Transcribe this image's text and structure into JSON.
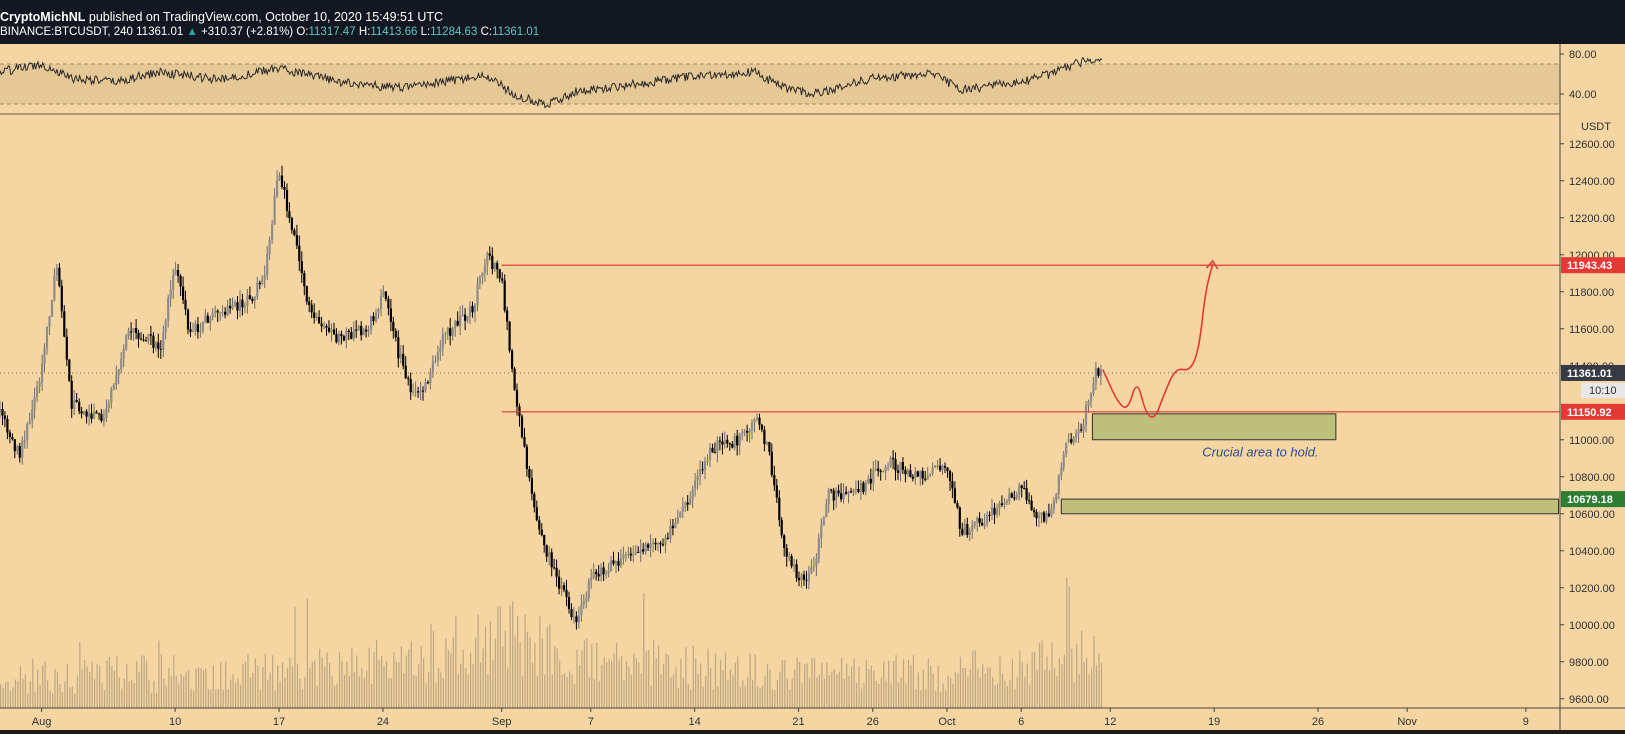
{
  "header": {
    "author": "CryptoMichNL",
    "published_text": "published on TradingView.com, October 10, 2020 15:49:51 UTC",
    "symbol": "BINANCE:BTCUSDT, 240",
    "last": "11361.01",
    "change_arrow": "▲",
    "change": "+310.37 (+2.81%)",
    "o_label": "O:",
    "o_value": "11317.47",
    "h_label": "H:",
    "h_value": "11413.66",
    "l_label": "L:",
    "l_value": "11284.63",
    "c_label": "C:",
    "c_value": "11361.01"
  },
  "colors": {
    "background": "#f5d6a3",
    "candle": "#000000",
    "resistance": "#e53935",
    "support_zone": "#bdbf7a",
    "tag_red": "#e53935",
    "tag_green": "#2e7d32",
    "tag_dark": "#363a45"
  },
  "chart_data": {
    "type": "candlestick",
    "currency": "USDT",
    "ylim": [
      9550,
      12750
    ],
    "y_ticks": [
      {
        "v": 12600,
        "label": "12600.00"
      },
      {
        "v": 12400,
        "label": "12400.00"
      },
      {
        "v": 12200,
        "label": "12200.00"
      },
      {
        "v": 12000,
        "label": "12000.00"
      },
      {
        "v": 11800,
        "label": "11800.00"
      },
      {
        "v": 11600,
        "label": "11600.00"
      },
      {
        "v": 11400,
        "label": "11400.00"
      },
      {
        "v": 11000,
        "label": "11000.00"
      },
      {
        "v": 10800,
        "label": "10800.00"
      },
      {
        "v": 10600,
        "label": "10600.00"
      },
      {
        "v": 10400,
        "label": "10400.00"
      },
      {
        "v": 10200,
        "label": "10200.00"
      },
      {
        "v": 10000,
        "label": "10000.00"
      },
      {
        "v": 9800,
        "label": "9800.00"
      },
      {
        "v": 9600,
        "label": "9600.00"
      }
    ],
    "x_range": [
      -2.8,
      102.3
    ],
    "x_ticks": [
      {
        "d": 0,
        "label": "Aug"
      },
      {
        "d": 9,
        "label": "10"
      },
      {
        "d": 16,
        "label": "17"
      },
      {
        "d": 23,
        "label": "24"
      },
      {
        "d": 31,
        "label": "Sep"
      },
      {
        "d": 37,
        "label": "7"
      },
      {
        "d": 44,
        "label": "14"
      },
      {
        "d": 51,
        "label": "21"
      },
      {
        "d": 56,
        "label": "26"
      },
      {
        "d": 61,
        "label": "Oct"
      },
      {
        "d": 66,
        "label": "6"
      },
      {
        "d": 72,
        "label": "12"
      },
      {
        "d": 79,
        "label": "19"
      },
      {
        "d": 86,
        "label": "26"
      },
      {
        "d": 92,
        "label": "Nov"
      },
      {
        "d": 100,
        "label": "9"
      }
    ],
    "price_path": [
      [
        -2.8,
        11150
      ],
      [
        -1.5,
        10920
      ],
      [
        0,
        11380
      ],
      [
        1,
        11950
      ],
      [
        2,
        11200
      ],
      [
        4,
        11100
      ],
      [
        6,
        11600
      ],
      [
        8,
        11500
      ],
      [
        9,
        11950
      ],
      [
        10,
        11580
      ],
      [
        12,
        11700
      ],
      [
        14,
        11750
      ],
      [
        15,
        11900
      ],
      [
        16,
        12450
      ],
      [
        17,
        12100
      ],
      [
        18,
        11700
      ],
      [
        20,
        11550
      ],
      [
        22,
        11600
      ],
      [
        23,
        11800
      ],
      [
        24,
        11480
      ],
      [
        25,
        11250
      ],
      [
        26,
        11300
      ],
      [
        27,
        11550
      ],
      [
        29,
        11700
      ],
      [
        30,
        12010
      ],
      [
        31,
        11850
      ],
      [
        32,
        11200
      ],
      [
        33,
        10700
      ],
      [
        34,
        10400
      ],
      [
        35,
        10200
      ],
      [
        36,
        10000
      ],
      [
        37,
        10250
      ],
      [
        38,
        10300
      ],
      [
        40,
        10400
      ],
      [
        42,
        10450
      ],
      [
        43,
        10600
      ],
      [
        44,
        10750
      ],
      [
        45,
        10950
      ],
      [
        47,
        11000
      ],
      [
        48,
        11120
      ],
      [
        49,
        10950
      ],
      [
        50,
        10400
      ],
      [
        51,
        10250
      ],
      [
        52,
        10280
      ],
      [
        53,
        10700
      ],
      [
        55,
        10720
      ],
      [
        57,
        10880
      ],
      [
        59,
        10800
      ],
      [
        61,
        10850
      ],
      [
        62,
        10500
      ],
      [
        64,
        10600
      ],
      [
        66,
        10750
      ],
      [
        67,
        10570
      ],
      [
        68,
        10600
      ],
      [
        69,
        10950
      ],
      [
        70,
        11050
      ],
      [
        71,
        11360
      ],
      [
        71.5,
        11361.01
      ]
    ],
    "volume_path": [
      [
        -2.8,
        0.25
      ],
      [
        20,
        0.3
      ],
      [
        32,
        0.55
      ],
      [
        36,
        0.4
      ],
      [
        50,
        0.25
      ],
      [
        66,
        0.3
      ],
      [
        70,
        0.45
      ],
      [
        71.5,
        0.35
      ]
    ],
    "rsi": {
      "ylim": [
        20,
        90
      ],
      "ticks": [
        {
          "v": 80,
          "label": "80.00"
        },
        {
          "v": 40,
          "label": "40.00"
        }
      ],
      "band": [
        30,
        70
      ],
      "path": [
        [
          -2.8,
          62
        ],
        [
          0,
          70
        ],
        [
          2,
          56
        ],
        [
          5,
          52
        ],
        [
          8,
          62
        ],
        [
          12,
          54
        ],
        [
          16,
          66
        ],
        [
          20,
          52
        ],
        [
          24,
          46
        ],
        [
          28,
          54
        ],
        [
          30,
          58
        ],
        [
          32,
          38
        ],
        [
          34,
          30
        ],
        [
          36,
          42
        ],
        [
          40,
          50
        ],
        [
          44,
          58
        ],
        [
          48,
          62
        ],
        [
          50,
          46
        ],
        [
          52,
          40
        ],
        [
          54,
          48
        ],
        [
          56,
          56
        ],
        [
          60,
          60
        ],
        [
          62,
          44
        ],
        [
          66,
          52
        ],
        [
          68,
          60
        ],
        [
          70,
          72
        ],
        [
          71.5,
          75
        ]
      ]
    },
    "levels": [
      {
        "name": "resistance",
        "value": 11943.43,
        "label": "11943.43",
        "x_from": 31
      },
      {
        "name": "support-line",
        "value": 11150.92,
        "label": "11150.92",
        "x_from": 31
      }
    ],
    "current_price": {
      "value": 11361.01,
      "label": "11361.01",
      "countdown": "10:10"
    },
    "zones": [
      {
        "name": "crucial-zone",
        "x_from": 70.8,
        "x_to": 87.2,
        "y_low": 11000,
        "y_high": 11140
      },
      {
        "name": "lower-support-zone",
        "x_from": 68.7,
        "x_to": 102.2,
        "y_low": 10600,
        "y_high": 10679.18,
        "label": "10679.18"
      }
    ],
    "annotation": {
      "text": "Crucial area to hold.",
      "x": 78.2,
      "y": 10930
    },
    "projection_path": [
      [
        71.5,
        11380
      ],
      [
        72.5,
        11200
      ],
      [
        73.2,
        11160
      ],
      [
        73.8,
        11330
      ],
      [
        74.4,
        11140
      ],
      [
        75,
        11110
      ],
      [
        75.6,
        11240
      ],
      [
        76.4,
        11390
      ],
      [
        77.4,
        11370
      ],
      [
        78,
        11500
      ],
      [
        78.4,
        11800
      ],
      [
        78.9,
        11950
      ]
    ]
  }
}
